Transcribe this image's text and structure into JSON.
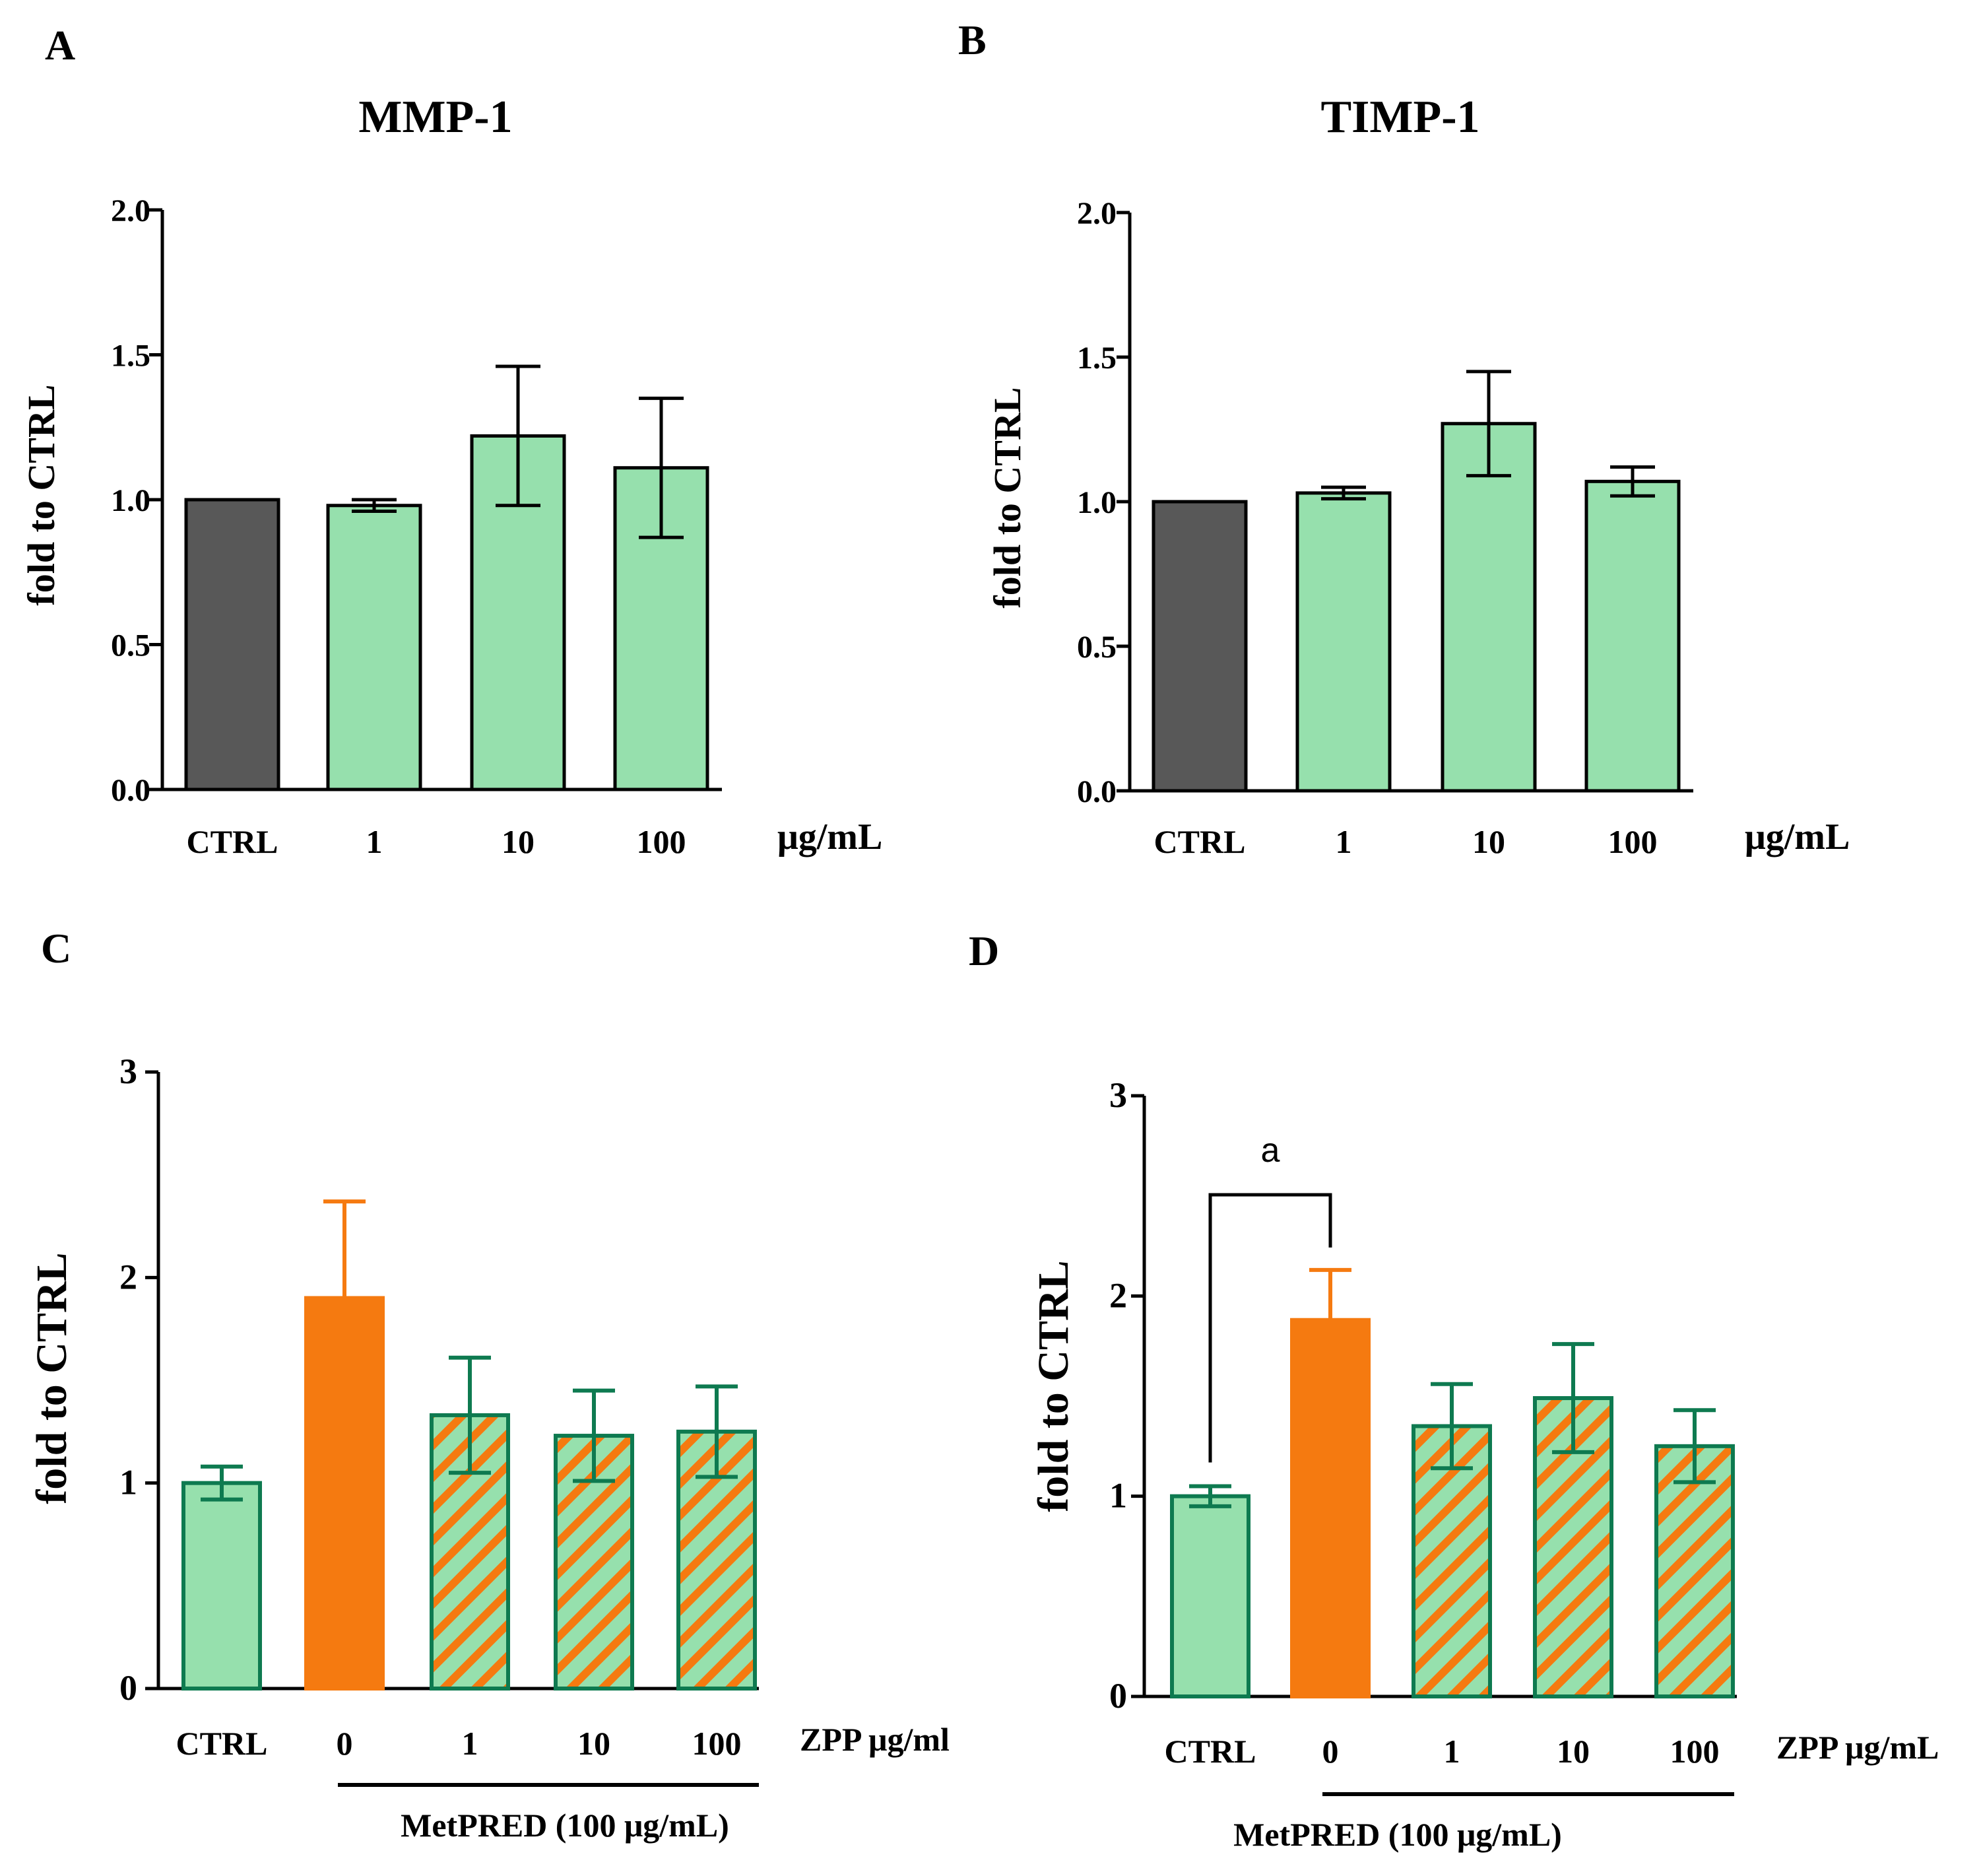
{
  "colors": {
    "ctrl_dark": "#585858",
    "green_fill": "#96e0ad",
    "green_edge": "#0e7a50",
    "orange": "#f57a10",
    "black": "#000000"
  },
  "chart_data": [
    {
      "panel": "A",
      "type": "bar",
      "title": "MMP-1",
      "ylabel": "fold to CTRL",
      "ylim": [
        0,
        2.0
      ],
      "yticks": [
        "0.0",
        "0.5",
        "1.0",
        "1.5",
        "2.0"
      ],
      "categories": [
        "CTRL",
        "1",
        "10",
        "100"
      ],
      "unit_label": "μg/mL",
      "group_label": "",
      "values": [
        1.0,
        0.98,
        1.22,
        1.11
      ],
      "errors": [
        0,
        0.02,
        0.24,
        0.24
      ],
      "bar_styles": [
        "dark",
        "green",
        "green",
        "green"
      ]
    },
    {
      "panel": "B",
      "type": "bar",
      "title": "TIMP-1",
      "ylabel": "fold to CTRL",
      "ylim": [
        0,
        2.0
      ],
      "yticks": [
        "0.0",
        "0.5",
        "1.0",
        "1.5",
        "2.0"
      ],
      "categories": [
        "CTRL",
        "1",
        "10",
        "100"
      ],
      "unit_label": "μg/mL",
      "group_label": "",
      "values": [
        1.0,
        1.03,
        1.27,
        1.07
      ],
      "errors": [
        0,
        0.02,
        0.18,
        0.05
      ],
      "bar_styles": [
        "dark",
        "green",
        "green",
        "green"
      ]
    },
    {
      "panel": "C",
      "type": "bar",
      "title": "",
      "ylabel": "fold to CTRL",
      "ylim": [
        0,
        3
      ],
      "yticks": [
        "0",
        "1",
        "2",
        "3"
      ],
      "categories": [
        "CTRL",
        "0",
        "1",
        "10",
        "100"
      ],
      "unit_label": "ZPP μg/ml",
      "group_label": "MetPRED (100 μg/mL)",
      "values": [
        1.0,
        1.9,
        1.33,
        1.23,
        1.25
      ],
      "errors": [
        0.08,
        0.47,
        0.28,
        0.22,
        0.22
      ],
      "bar_styles": [
        "green",
        "orange",
        "hatched",
        "hatched",
        "hatched"
      ]
    },
    {
      "panel": "D",
      "type": "bar",
      "title": "",
      "ylabel": "fold to CTRL",
      "ylim": [
        0,
        3
      ],
      "yticks": [
        "0",
        "1",
        "2",
        "3"
      ],
      "categories": [
        "CTRL",
        "0",
        "1",
        "10",
        "100"
      ],
      "unit_label": "ZPP μg/mL",
      "group_label": "MetPRED (100 μg/mL)",
      "values": [
        1.0,
        1.88,
        1.35,
        1.49,
        1.25
      ],
      "errors": [
        0.05,
        0.25,
        0.21,
        0.27,
        0.18
      ],
      "bar_styles": [
        "green",
        "orange",
        "hatched",
        "hatched",
        "hatched"
      ],
      "significance": {
        "label": "a",
        "from": 0,
        "to": 1
      }
    }
  ]
}
